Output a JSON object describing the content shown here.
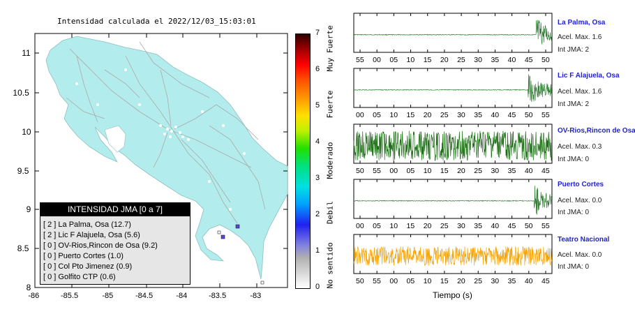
{
  "map": {
    "title": "Intensidad calculada el 2022/12/03_15:03:01",
    "lon_ticks": [
      "-86",
      "-85.5",
      "-85",
      "-84.5",
      "-84",
      "-83.5",
      "-83"
    ],
    "lat_ticks": [
      "11",
      "10.5",
      "10",
      "9.5",
      "9",
      "8.5",
      "8"
    ],
    "colors": {
      "land": "#b3ecec",
      "sea": "#ffffff",
      "roads": "#a9a9a9",
      "station_marker": "#5b4bd0"
    }
  },
  "colorbar": {
    "ticks": [
      "0",
      "1",
      "2",
      "3",
      "4",
      "5",
      "6",
      "7"
    ],
    "class_labels": [
      "No sentido",
      "Debil",
      "Moderado",
      "Fuerte",
      "Muy Fuerte"
    ]
  },
  "legend": {
    "title": "INTENSIDAD JMA [0 a 7]",
    "rows": [
      "[ 2 ]  La Palma, Osa (12.7)",
      "[ 2 ]  Lic F Alajuela, Osa (5.6)",
      "[ 0 ]  OV-Rios,Rincon de Osa (9.2)",
      "[ 0 ]  Puerto Cortes (1.0)",
      "[ 0 ]  Col Pto Jimenez (0.9)",
      "[ 0 ]  Golfito CTP (0.6)"
    ]
  },
  "traces": [
    {
      "name": "La Palma, Osa",
      "accel": "Acel. Max. 1.6",
      "jma": "Int JMA: 2",
      "color": "#2e7d32",
      "ticks": [
        "55",
        "00",
        "05",
        "10",
        "15",
        "20",
        "25",
        "30",
        "35",
        "40",
        "45",
        "50"
      ],
      "burst_start": 0.92,
      "noise": 0.02
    },
    {
      "name": "Lic F Alajuela, Osa",
      "accel": "Acel. Max. 1.6",
      "jma": "Int JMA: 2",
      "color": "#2e7d32",
      "ticks": [
        "00",
        "05",
        "10",
        "15",
        "20",
        "25",
        "30",
        "35",
        "40",
        "45",
        "50",
        "55"
      ],
      "burst_start": 0.88,
      "noise": 0.02
    },
    {
      "name": "OV-Rios,Rincon de Osa",
      "accel": "Acel. Max. 0.3",
      "jma": "Int JMA: 0",
      "color": "#1b6e14",
      "ticks": [
        "50",
        "55",
        "00",
        "05",
        "10",
        "15",
        "20",
        "25",
        "30",
        "35",
        "40",
        "45"
      ],
      "burst_start": 2.0,
      "noise": 0.85
    },
    {
      "name": "Puerto Cortes",
      "accel": "Acel. Max. 0.0",
      "jma": "Int JMA: 0",
      "color": "#2e7d32",
      "ticks": [
        "00",
        "05",
        "10",
        "15",
        "20",
        "25",
        "30",
        "35",
        "40",
        "45",
        "50",
        "55"
      ],
      "burst_start": 0.91,
      "noise": 0.02
    },
    {
      "name": "Teatro Nacional",
      "accel": "Acel. Max. 0.0",
      "jma": "Int JMA: 0",
      "color": "#f5a300",
      "ticks": [
        "50",
        "55",
        "00",
        "05",
        "10",
        "15",
        "20",
        "25",
        "30",
        "35",
        "40",
        "45"
      ],
      "burst_start": 2.0,
      "noise": 0.55
    }
  ],
  "time_label": "Tiempo (s)"
}
